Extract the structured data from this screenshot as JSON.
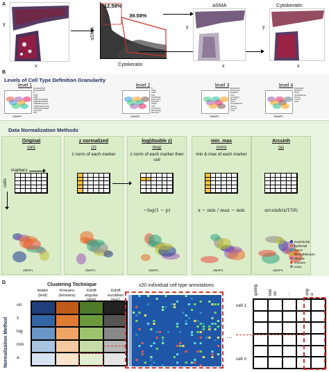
{
  "panel_a": {
    "label": "A",
    "scatter": {
      "y_axis": "aSMA",
      "x_axis": "Cytokeratin",
      "pct_top": "12.58%",
      "pct_mid": "39.58%"
    },
    "left_axes": {
      "y": "y",
      "x": "x"
    },
    "right_titles": {
      "asma": "aSMA",
      "cytokeratin": "Cytokeratin"
    },
    "right_axes": {
      "y1": "y",
      "x1": "x",
      "y2": "y",
      "x2": "x"
    },
    "colors": {
      "tissue_dark": "#3a1a4a",
      "tissue_red": "#c8102e",
      "gate_red": "#d0332b"
    }
  },
  "panel_b": {
    "label": "B",
    "title": "Levels of Cell Type Definition Granularity",
    "levels": [
      {
        "name": "level 1",
        "legend": [
          "ActivatedCD4T",
          "ActivatedCD8T",
          "B",
          "CD4T",
          "CD8T",
          "CD68macrophage",
          "CD8pcEndothelial",
          "CD8pcEnterocytes",
          "CD57pcEnterocytes",
          "CD57pcEndothelial",
          "CyclingTA",
          "DCs",
          "Endothelial",
          "Enterocytes",
          "Goblet",
          "ICCs",
          "ImmatureGoblet",
          "Lymphatics",
          "M1Macrophages",
          "M2Macrophages",
          "MonocytesMacrophages",
          "Monocytes",
          "NK",
          "Neurons",
          "Neutrophil",
          "Paneth",
          "Plasma",
          "ProliferatingGoblet",
          "SmoothMuscle",
          "SmoothMuscle2",
          "Stroma",
          "TA",
          "TACD7",
          "TACD8",
          "TACD9"
        ],
        "x": "UMAP1",
        "y": "UMAP2"
      },
      {
        "name": "level 2",
        "legend": [
          "B",
          "CD4T",
          "CD8T",
          "DCs",
          "Endothelial",
          "Enterocytes",
          "Epithelial",
          "Goblet",
          "ICCs",
          "Lymphatics",
          "Macrophage",
          "Monocyte",
          "NK",
          "Nerve",
          "Neutrophil",
          "Plasma",
          "SmoothMuscle",
          "Stroma",
          "TA"
        ],
        "x": "UMAP1",
        "y": "UMAP2"
      },
      {
        "name": "level 3",
        "legend": [
          "Endothelial",
          "Enterocytes",
          "Epithelial",
          "ICCs",
          "Lymphatics",
          "Myeloid",
          "Nerve",
          "SmoothMuscle",
          "Stroma",
          "immune",
          "noise"
        ],
        "x": "UMAP1",
        "y": "UMAP2"
      },
      {
        "name": "level 4",
        "legend": [
          "Endothelial",
          "Epithelial",
          "Nerve",
          "SmoothMuscle",
          "Stroma",
          "immune",
          "noise"
        ],
        "x": "UMAP1",
        "y": "UMAP2"
      }
    ]
  },
  "panel_c": {
    "label": "C",
    "title": "Data Normalization Methods",
    "markers_label": "markers",
    "cells_label": "cells",
    "methods": [
      {
        "title": "Original",
        "abbr": "(ori)",
        "desc": ""
      },
      {
        "title": "z normalized",
        "abbr": "(z)",
        "desc": "z norm of each marker"
      },
      {
        "title": "log(double z)",
        "abbr": "(log)",
        "desc": "z norm of each marker then cell"
      },
      {
        "title": "min_max",
        "abbr": "(min)",
        "desc": "min & max of each marker"
      },
      {
        "title": "Arcsinh",
        "abbr": "(a)",
        "desc": ""
      }
    ],
    "formulas": [
      "",
      "",
      "−log(1 − p)",
      "x − min / max − min",
      "arcsinh(x/150)"
    ],
    "umap_axes": {
      "x": "UMAP1",
      "y": "UMAP2"
    },
    "legend": [
      "Endothelial",
      "Epithelial",
      "Nerve",
      "SmoothMuscle",
      "Stroma",
      "immune",
      "noise"
    ],
    "legend_colors": [
      "#1f3a93",
      "#e8702a",
      "#2ca87f",
      "#bfbf2f",
      "#9b59b6",
      "#e74c3c",
      "#888888"
    ]
  },
  "panel_d": {
    "label": "D",
    "title": "Clustering Technique",
    "row_axis": "Normalization Method",
    "columns": [
      {
        "name": "leiden",
        "abbr": "(leid)"
      },
      {
        "name": "Kmeans",
        "abbr": "(kmeans)"
      },
      {
        "name": "Xshift angular",
        "abbr": "(ang)"
      },
      {
        "name": "Xshift euclidian",
        "abbr": "(euc)"
      }
    ],
    "rows": [
      "ori",
      "z",
      "log",
      "min",
      "a"
    ],
    "cell_colors": [
      [
        "#1f3e7a",
        "#c05a1a",
        "#4e7a2a",
        "#222222"
      ],
      [
        "#3366a6",
        "#e07b32",
        "#6a9a3c",
        "#555555"
      ],
      [
        "#6a96c8",
        "#eea466",
        "#9cc36e",
        "#888888"
      ],
      [
        "#a9c3e0",
        "#f5c9a0",
        "#c5dca8",
        "#b8b8b8"
      ],
      [
        "#d7e3f0",
        "#fbe4cc",
        "#e2eed2",
        "#e5e5e5"
      ]
    ],
    "heatmap_title": "x20 individual cell type annotations",
    "ann_headers": [
      "gating",
      "leid",
      "ori",
      "…",
      "ang",
      "a"
    ],
    "ann_rows": [
      "cell 1",
      "cell n"
    ],
    "ellipsis": "…"
  }
}
